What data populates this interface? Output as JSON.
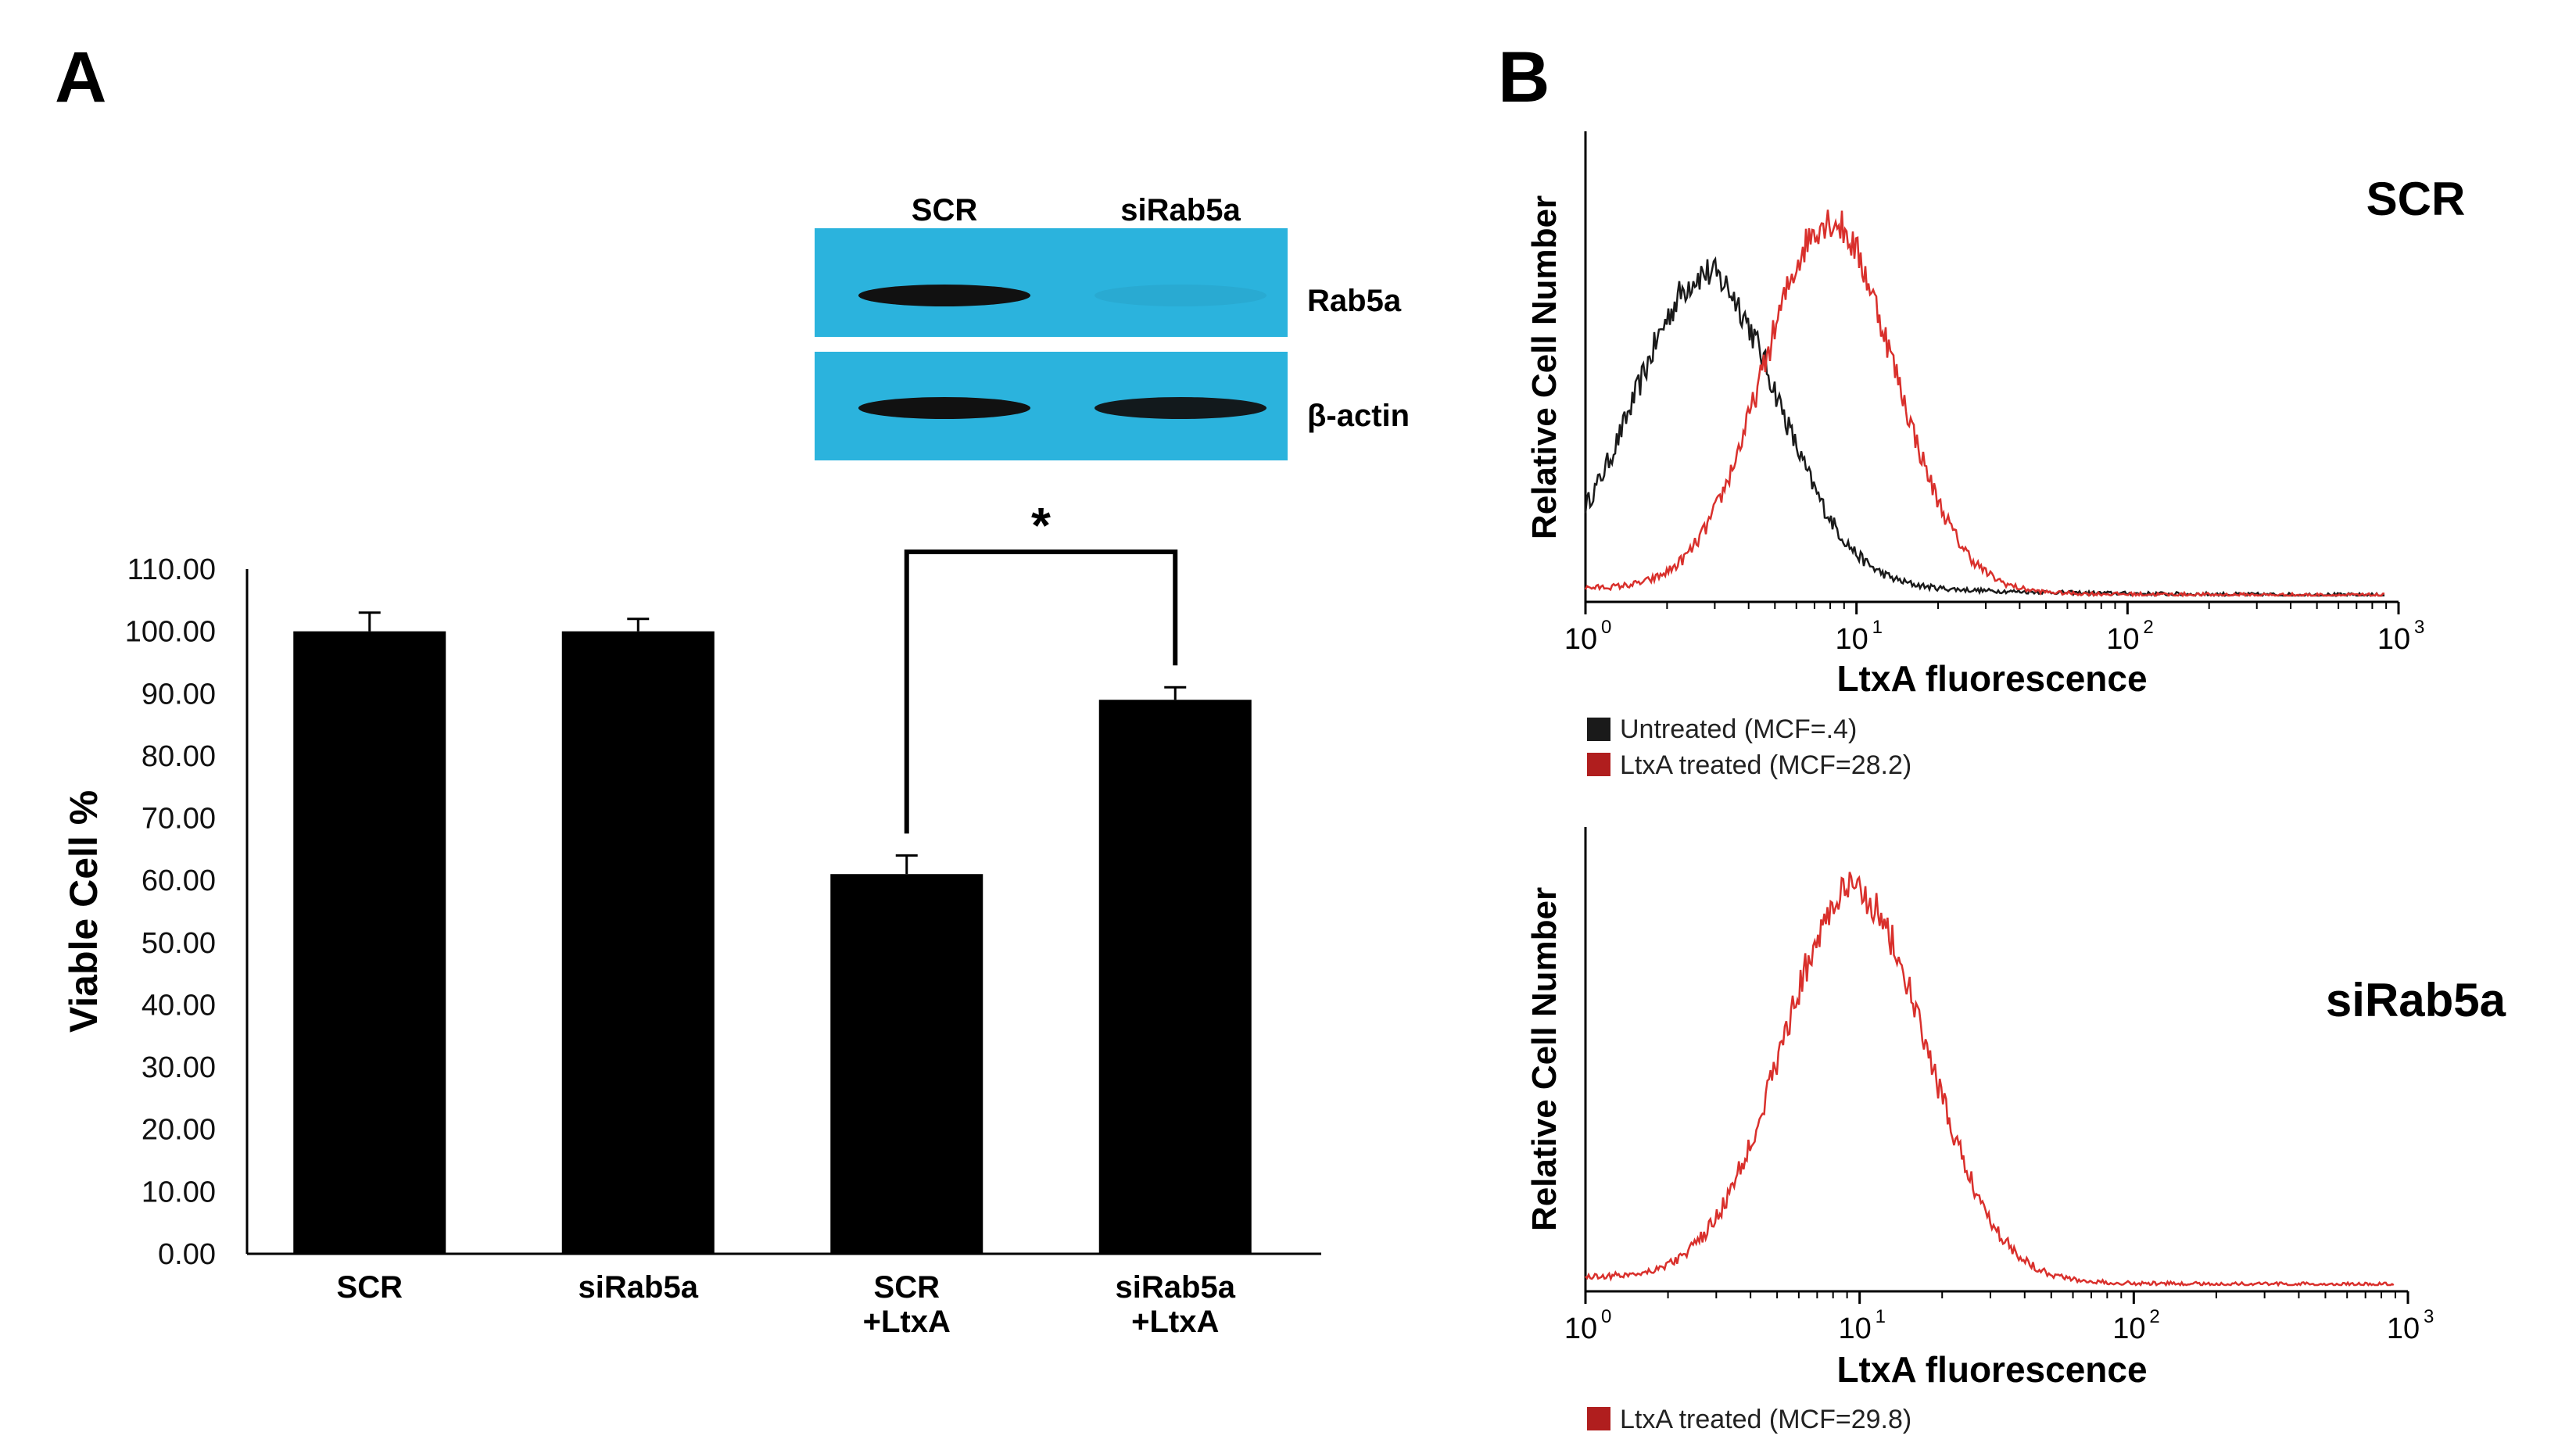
{
  "panel_a": {
    "letter": "A",
    "blot": {
      "lanes": [
        "SCR",
        "siRab5a"
      ],
      "rows": [
        "Rab5a",
        "β-actin"
      ],
      "background_color": "#2bb3dd",
      "band_color": "#111111",
      "bands": [
        {
          "row": 0,
          "lane": 0,
          "intensity": 1.0
        },
        {
          "row": 0,
          "lane": 1,
          "intensity": 0.05
        },
        {
          "row": 1,
          "lane": 0,
          "intensity": 1.0
        },
        {
          "row": 1,
          "lane": 1,
          "intensity": 0.95
        }
      ]
    },
    "significance": "*"
  },
  "panel_b": {
    "letter": "B",
    "legend_colors": {
      "untreated": "#1a1a1a",
      "treated": "#b01e1e"
    }
  },
  "chart_data": [
    {
      "type": "bar",
      "title": "",
      "xlabel": "",
      "ylabel": "Viable Cell %",
      "ylim": [
        0,
        110
      ],
      "ytick_step": 10,
      "ytick_labels": [
        "0.00",
        "10.00",
        "20.00",
        "30.00",
        "40.00",
        "50.00",
        "60.00",
        "70.00",
        "80.00",
        "90.00",
        "100.00",
        "110.00"
      ],
      "categories": [
        [
          "SCR"
        ],
        [
          "siRab5a"
        ],
        [
          "SCR",
          "+LtxA"
        ],
        [
          "siRab5a",
          "+LtxA"
        ]
      ],
      "values": [
        100,
        100,
        61,
        89
      ],
      "errors": [
        3,
        2,
        3,
        2
      ],
      "bar_color": "#000000",
      "significance": {
        "between": [
          2,
          3
        ],
        "label": "*"
      }
    },
    {
      "type": "line",
      "condition": "SCR",
      "xlabel": "LtxA fluorescence",
      "ylabel": "Relative Cell Number",
      "xscale": "log",
      "xlim": [
        1,
        1000
      ],
      "x_decades": [
        0,
        1,
        2,
        3
      ],
      "series": [
        {
          "name": "Untreated (MCF=.4)",
          "color": "#1a1a1a",
          "peak_log": 0.45,
          "width_log": 0.26,
          "amplitude": 0.8,
          "base": 0.06
        },
        {
          "name": "LtxA treated (MCF=28.2)",
          "color": "#d9302c",
          "peak_log": 0.9,
          "width_log": 0.24,
          "amplitude": 0.98,
          "base": 0.02
        }
      ]
    },
    {
      "type": "line",
      "condition": "siRab5a",
      "xlabel": "LtxA fluorescence",
      "ylabel": "Relative Cell Number",
      "xscale": "log",
      "xlim": [
        1,
        1000
      ],
      "x_decades": [
        0,
        1,
        2,
        3
      ],
      "series": [
        {
          "name": "LtxA treated (MCF=29.8)",
          "color": "#d9302c",
          "peak_log": 0.98,
          "width_log": 0.26,
          "amplitude": 0.95,
          "base": 0.02
        }
      ]
    }
  ]
}
